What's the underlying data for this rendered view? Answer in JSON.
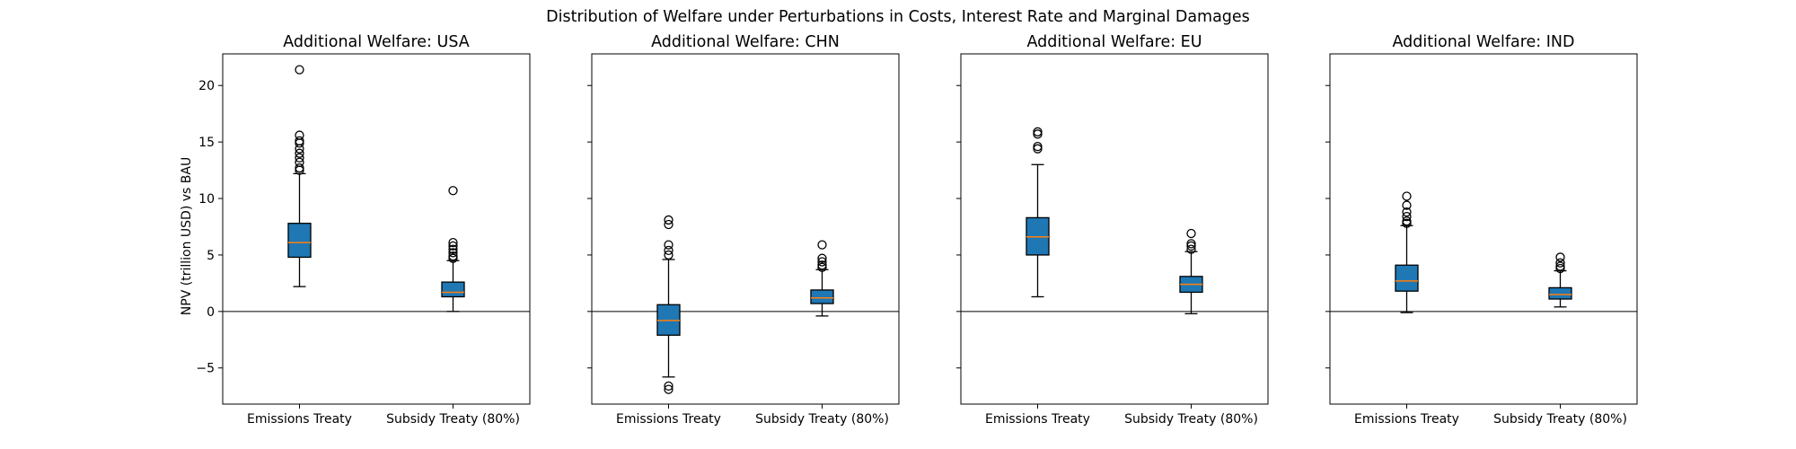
{
  "chart_data": {
    "type": "box",
    "title": "Distribution of Welfare under Perturbations in Costs, Interest Rate and Marginal Damages",
    "ylabel": "NPV (trillion USD) vs BAU",
    "ylim": [
      -8.2,
      22.8
    ],
    "yticks": [
      -5,
      0,
      5,
      10,
      15,
      20
    ],
    "categories": [
      "Emissions Treaty",
      "Subsidy Treaty (80%)"
    ],
    "box_color": "#1f77b4",
    "median_color": "#ff7f0e",
    "zero_line": true,
    "panels": [
      {
        "title": "Additional Welfare: USA",
        "boxes": [
          {
            "q1": 4.8,
            "median": 6.1,
            "q3": 7.8,
            "whisker_low": 2.2,
            "whisker_high": 12.2,
            "outliers": [
              12.5,
              12.7,
              13.2,
              13.6,
              14.0,
              14.4,
              14.9,
              15.1,
              15.6,
              21.4
            ]
          },
          {
            "q1": 1.3,
            "median": 1.7,
            "q3": 2.6,
            "whisker_low": 0.0,
            "whisker_high": 4.5,
            "outliers": [
              4.7,
              4.9,
              5.2,
              5.5,
              5.8,
              6.1,
              10.7
            ]
          }
        ]
      },
      {
        "title": "Additional Welfare: CHN",
        "boxes": [
          {
            "q1": -2.1,
            "median": -0.8,
            "q3": 0.6,
            "whisker_low": -5.8,
            "whisker_high": 4.6,
            "outliers": [
              5.0,
              5.4,
              5.9,
              7.7,
              8.1,
              -6.6,
              -6.9
            ]
          },
          {
            "q1": 0.7,
            "median": 1.2,
            "q3": 1.9,
            "whisker_low": -0.4,
            "whisker_high": 3.7,
            "outliers": [
              3.9,
              4.1,
              4.4,
              4.7,
              5.9
            ]
          }
        ]
      },
      {
        "title": "Additional Welfare: EU",
        "boxes": [
          {
            "q1": 5.0,
            "median": 6.6,
            "q3": 8.3,
            "whisker_low": 1.3,
            "whisker_high": 13.0,
            "outliers": [
              14.4,
              14.6,
              15.7,
              15.9
            ]
          },
          {
            "q1": 1.7,
            "median": 2.4,
            "q3": 3.1,
            "whisker_low": -0.2,
            "whisker_high": 5.3,
            "outliers": [
              5.5,
              5.8,
              6.0,
              6.9
            ]
          }
        ]
      },
      {
        "title": "Additional Welfare: IND",
        "boxes": [
          {
            "q1": 1.8,
            "median": 2.7,
            "q3": 4.1,
            "whisker_low": -0.1,
            "whisker_high": 7.6,
            "outliers": [
              7.8,
              8.0,
              8.4,
              8.8,
              9.4,
              10.2
            ]
          },
          {
            "q1": 1.1,
            "median": 1.5,
            "q3": 2.1,
            "whisker_low": 0.4,
            "whisker_high": 3.6,
            "outliers": [
              3.8,
              4.0,
              4.3,
              4.8
            ]
          }
        ]
      }
    ]
  }
}
